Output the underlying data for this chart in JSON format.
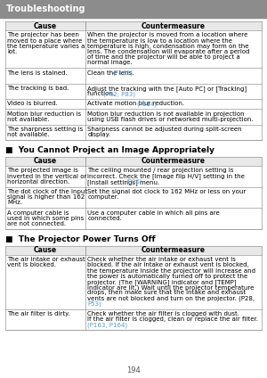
{
  "header_bg": "#8c8c8c",
  "header_text": "Troubleshooting",
  "header_text_color": "#ffffff",
  "page_bg": "#ffffff",
  "table_border_color": "#999999",
  "link_color": "#5599cc",
  "col_header_bg": "#e8e8e8",
  "sections": [
    {
      "title": null,
      "rows": [
        {
          "cause": [
            "The projector has been",
            "moved to a place where",
            "the temperature varies a",
            "lot."
          ],
          "counter": [
            [
              "When the projector is moved from a location where",
              "black"
            ],
            [
              "the temperature is low to a location where the",
              "black"
            ],
            [
              "temperature is high, condensation may form on the",
              "black"
            ],
            [
              "lens. The condensation will evaporate after a period",
              "black"
            ],
            [
              "of time and the projector will be able to project a",
              "black"
            ],
            [
              "normal image.",
              "black"
            ]
          ]
        },
        {
          "cause": [
            "The lens is stained."
          ],
          "counter": [
            [
              "Clean the lens. (P162)",
              "mixed"
            ],
            [
              "",
              "black"
            ]
          ],
          "counter_mixed": [
            [
              [
                "Clean the lens. ",
                "black"
              ],
              [
                "(P162)",
                "link"
              ]
            ]
          ]
        },
        {
          "cause": [
            "The tracking is bad."
          ],
          "counter": [
            [
              "Adjust the tracking with the [Auto PC] or [Tracking]",
              "black"
            ],
            [
              "function. (P82, P83)",
              "mixed"
            ]
          ],
          "counter_mixed": [
            null,
            [
              [
                "function. ",
                "black"
              ],
              [
                "(P82, P83)",
                "link"
              ]
            ]
          ]
        },
        {
          "cause": [
            "Video is blurred."
          ],
          "counter": [
            [
              "Activate motion blur reduction. (P114)",
              "mixed"
            ]
          ],
          "counter_mixed": [
            [
              [
                "Activate motion blur reduction. ",
                "black"
              ],
              [
                "(P114)",
                "link"
              ]
            ]
          ]
        },
        {
          "cause": [
            "Motion blur reduction is",
            "not available."
          ],
          "counter": [
            [
              "Motion blur reduction is not available in projection",
              "black"
            ],
            [
              "using USB flash drives or networked multi-projection.",
              "black"
            ]
          ]
        },
        {
          "cause": [
            "The sharpness setting is",
            "not available."
          ],
          "counter": [
            [
              "Sharpness cannot be adjusted during split-screen",
              "black"
            ],
            [
              "display.",
              "black"
            ]
          ]
        }
      ]
    },
    {
      "title": "■  You Cannot Project an Image Appropriately",
      "rows": [
        {
          "cause": [
            "The projected image is",
            "inverted in the vertical or",
            "horizontal direction."
          ],
          "counter": [
            [
              "The ceiling mounted / rear projection setting is",
              "black"
            ],
            [
              "incorrect. Check the [Image flip H/V] setting in the",
              "black"
            ],
            [
              "[Install settings] menu. (P96)",
              "mixed"
            ]
          ],
          "counter_mixed": [
            null,
            null,
            [
              [
                "[Install settings] menu. ",
                "black"
              ],
              [
                "(P96)",
                "link"
              ]
            ]
          ]
        },
        {
          "cause": [
            "The dot clock of the input",
            "signal is higher than 162",
            "MHz."
          ],
          "counter": [
            [
              "Set the signal dot clock to 162 MHz or less on your",
              "black"
            ],
            [
              "computer.",
              "black"
            ]
          ]
        },
        {
          "cause": [
            "A computer cable is",
            "used in which some pins",
            "are not connected."
          ],
          "counter": [
            [
              "Use a computer cable in which all pins are",
              "black"
            ],
            [
              "connected.",
              "black"
            ]
          ]
        }
      ]
    },
    {
      "title": "■  The Projector Power Turns Off",
      "rows": [
        {
          "cause": [
            "The air intake or exhaust",
            "vent is blocked."
          ],
          "counter": [
            [
              "Check whether the air intake or exhaust vent is",
              "black"
            ],
            [
              "blocked. If the air intake or exhaust vent is blocked,",
              "black"
            ],
            [
              "the temperature inside the projector will increase and",
              "black"
            ],
            [
              "the power is automatically turned off to protect the",
              "black"
            ],
            [
              "projector. (The [WARNING] indicator and [TEMP]",
              "black"
            ],
            [
              "indicator are lit.) Wait until the projector temperature",
              "black"
            ],
            [
              "drops, then make sure that the intake and exhaust",
              "black"
            ],
            [
              "vents are not blocked and turn on the projector. (P28,",
              "black"
            ],
            [
              "P53)",
              "mixed"
            ]
          ],
          "counter_mixed": [
            null,
            null,
            null,
            null,
            null,
            null,
            null,
            null,
            [
              [
                "P53)",
                "link"
              ]
            ]
          ]
        },
        {
          "cause": [
            "The air filter is dirty."
          ],
          "counter": [
            [
              "Check whether the air filter is clogged with dust.",
              "black"
            ],
            [
              "If the air filter is clogged, clean or replace the air filter.",
              "black"
            ],
            [
              "(P163, P164)",
              "mixed"
            ]
          ],
          "counter_mixed": [
            null,
            null,
            [
              [
                "(P163, P164)",
                "link"
              ]
            ]
          ]
        }
      ]
    }
  ],
  "footer_text": "194"
}
